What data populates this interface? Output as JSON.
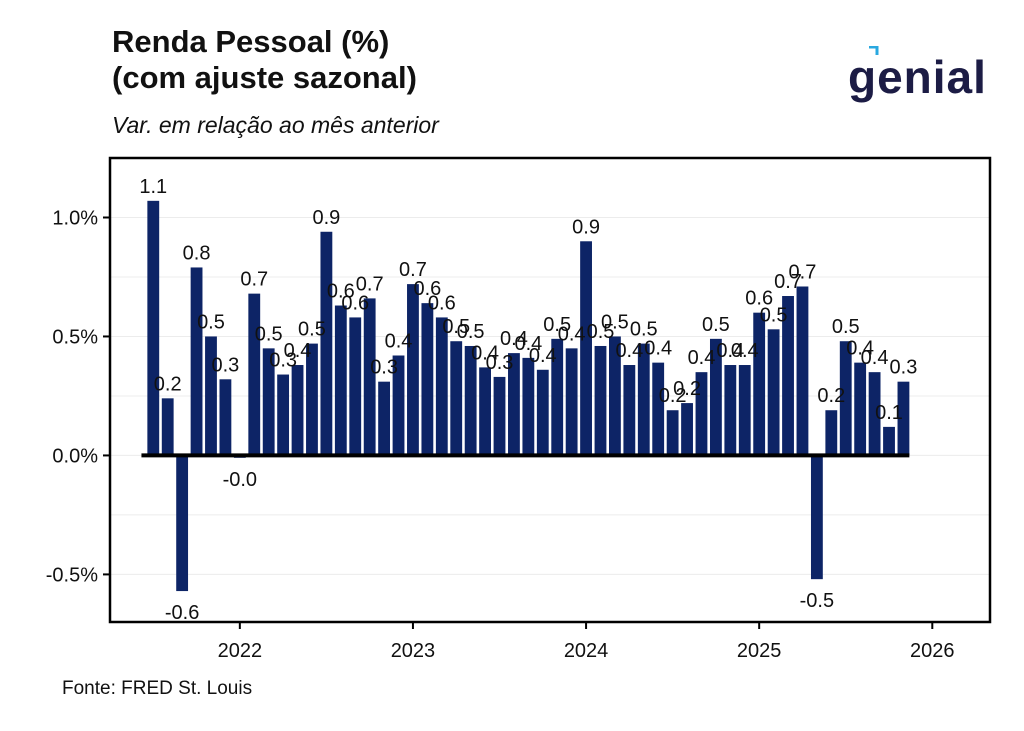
{
  "header": {
    "title_line1": "Renda Pessoal (%)",
    "title_line2": "(com ajuste sazonal)",
    "subtitle": "Var. em relação ao mês anterior"
  },
  "logo": {
    "text": "genial",
    "color": "#1c1c45",
    "accent": "#29a8e0"
  },
  "footer": {
    "source": "Fonte: FRED St. Louis"
  },
  "chart_data": {
    "type": "bar",
    "title": "Renda Pessoal (%) (com ajuste sazonal)",
    "subtitle": "Var. em relação ao mês anterior",
    "bar_color": "#0d2466",
    "ylim": [
      -0.7,
      1.25
    ],
    "yticks": [
      -0.5,
      0.0,
      0.5,
      1.0
    ],
    "ytick_labels": [
      "-0.5%",
      "0.0%",
      "0.5%",
      "1.0%"
    ],
    "xlim": [
      "2021-04",
      "2026-05"
    ],
    "xticks": [
      "2022-01",
      "2023-01",
      "2024-01",
      "2025-01",
      "2026-01"
    ],
    "xtick_labels": [
      "2022",
      "2023",
      "2024",
      "2025",
      "2026"
    ],
    "grid": true,
    "legend": "none",
    "x": [
      "2021-07",
      "2021-08",
      "2021-09",
      "2021-10",
      "2021-11",
      "2021-12",
      "2022-01",
      "2022-02",
      "2022-03",
      "2022-04",
      "2022-05",
      "2022-06",
      "2022-07",
      "2022-08",
      "2022-09",
      "2022-10",
      "2022-11",
      "2022-12",
      "2023-01",
      "2023-02",
      "2023-03",
      "2023-04",
      "2023-05",
      "2023-06",
      "2023-07",
      "2023-08",
      "2023-09",
      "2023-10",
      "2023-11",
      "2023-12",
      "2024-01",
      "2024-02",
      "2024-03",
      "2024-04",
      "2024-05",
      "2024-06",
      "2024-07",
      "2024-08",
      "2024-09",
      "2024-10",
      "2024-11",
      "2024-12",
      "2025-01",
      "2025-02",
      "2025-03",
      "2025-04",
      "2025-05",
      "2025-06",
      "2025-07",
      "2025-08",
      "2025-09",
      "2025-10",
      "2025-11"
    ],
    "values": [
      1.07,
      0.24,
      -0.57,
      0.79,
      0.5,
      0.32,
      -0.01,
      0.68,
      0.45,
      0.34,
      0.38,
      0.47,
      0.94,
      0.63,
      0.58,
      0.66,
      0.31,
      0.42,
      0.72,
      0.64,
      0.58,
      0.48,
      0.46,
      0.37,
      0.33,
      0.43,
      0.41,
      0.36,
      0.49,
      0.45,
      0.9,
      0.46,
      0.5,
      0.38,
      0.47,
      0.39,
      0.19,
      0.22,
      0.35,
      0.49,
      0.38,
      0.38,
      0.6,
      0.53,
      0.67,
      0.71,
      -0.52,
      0.19,
      0.48,
      0.39,
      0.35,
      0.12,
      0.31
    ],
    "labels": [
      "1.1",
      "0.2",
      "-0.6",
      "0.8",
      "0.5",
      "0.3",
      "-0.0",
      "0.7",
      "0.5",
      "0.3",
      "0.4",
      "0.5",
      "0.9",
      "0.6",
      "0.6",
      "0.7",
      "0.3",
      "0.4",
      "0.7",
      "0.6",
      "0.6",
      "0.5",
      "0.5",
      "0.4",
      "0.3",
      "0.4",
      "0.4",
      "0.4",
      "0.5",
      "0.4",
      "0.9",
      "0.5",
      "0.5",
      "0.4",
      "0.5",
      "0.4",
      "0.2",
      "0.2",
      "0.4",
      "0.5",
      "0.4",
      "0.4",
      "0.6",
      "0.5",
      "0.7",
      "0.7",
      "-0.5",
      "0.2",
      "0.5",
      "0.4",
      "0.4",
      "0.1",
      "0.3"
    ]
  }
}
